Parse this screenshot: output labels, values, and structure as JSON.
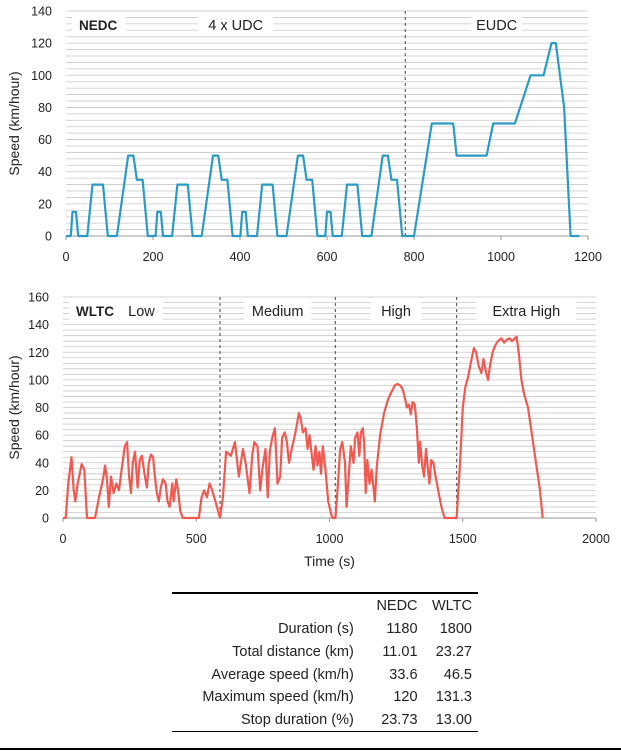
{
  "colors": {
    "nedc": "#2a9bc4",
    "wltc": "#ee5a52",
    "grid": "#c8c8c8",
    "divider": "#606060"
  },
  "chart_data": [
    {
      "type": "line",
      "title": "",
      "xlabel": "",
      "ylabel": "Speed (km/hour)",
      "xlim": [
        0,
        1200
      ],
      "ylim": [
        0,
        140
      ],
      "xticks": [
        0,
        200,
        400,
        600,
        800,
        1000,
        1200
      ],
      "yticks": [
        0,
        20,
        40,
        60,
        80,
        100,
        120,
        140
      ],
      "grid": "horizontal minor",
      "tag": "NEDC",
      "phases": [
        {
          "label": "4 x UDC",
          "x_start": 0,
          "x_end": 780
        },
        {
          "label": "EUDC",
          "x_start": 780,
          "x_end": 1200
        }
      ],
      "dividers": [
        780
      ],
      "series": [
        {
          "name": "",
          "points": [
            [
              0,
              0
            ],
            [
              11,
              0
            ],
            [
              15,
              15
            ],
            [
              23,
              15
            ],
            [
              28,
              0
            ],
            [
              49,
              0
            ],
            [
              61,
              32
            ],
            [
              85,
              32
            ],
            [
              96,
              0
            ],
            [
              117,
              0
            ],
            [
              143,
              50
            ],
            [
              155,
              50
            ],
            [
              163,
              35
            ],
            [
              176,
              35
            ],
            [
              188,
              0
            ],
            [
              195,
              0
            ],
            [
              206,
              0
            ],
            [
              210,
              15
            ],
            [
              218,
              15
            ],
            [
              223,
              0
            ],
            [
              244,
              0
            ],
            [
              256,
              32
            ],
            [
              280,
              32
            ],
            [
              291,
              0
            ],
            [
              312,
              0
            ],
            [
              338,
              50
            ],
            [
              350,
              50
            ],
            [
              358,
              35
            ],
            [
              371,
              35
            ],
            [
              383,
              0
            ],
            [
              390,
              0
            ],
            [
              401,
              0
            ],
            [
              405,
              15
            ],
            [
              413,
              15
            ],
            [
              418,
              0
            ],
            [
              439,
              0
            ],
            [
              451,
              32
            ],
            [
              475,
              32
            ],
            [
              486,
              0
            ],
            [
              507,
              0
            ],
            [
              533,
              50
            ],
            [
              545,
              50
            ],
            [
              553,
              35
            ],
            [
              566,
              35
            ],
            [
              578,
              0
            ],
            [
              585,
              0
            ],
            [
              596,
              0
            ],
            [
              600,
              15
            ],
            [
              608,
              15
            ],
            [
              613,
              0
            ],
            [
              634,
              0
            ],
            [
              646,
              32
            ],
            [
              670,
              32
            ],
            [
              681,
              0
            ],
            [
              702,
              0
            ],
            [
              728,
              50
            ],
            [
              740,
              50
            ],
            [
              748,
              35
            ],
            [
              761,
              35
            ],
            [
              773,
              0
            ],
            [
              780,
              0
            ],
            [
              800,
              0
            ],
            [
              841,
              70
            ],
            [
              890,
              70
            ],
            [
              898,
              50
            ],
            [
              967,
              50
            ],
            [
              982,
              70
            ],
            [
              1032,
              70
            ],
            [
              1068,
              100
            ],
            [
              1098,
              100
            ],
            [
              1116,
              120
            ],
            [
              1126,
              120
            ],
            [
              1145,
              80
            ],
            [
              1160,
              0
            ],
            [
              1180,
              0
            ]
          ]
        }
      ]
    },
    {
      "type": "line",
      "title": "",
      "xlabel": "Time (s)",
      "ylabel": "Speed (km/hour)",
      "xlim": [
        0,
        2000
      ],
      "ylim": [
        0,
        160
      ],
      "xticks": [
        0,
        500,
        1000,
        1500,
        2000
      ],
      "yticks": [
        0,
        20,
        40,
        60,
        80,
        100,
        120,
        140,
        160
      ],
      "grid": "horizontal minor",
      "tag": "WLTC",
      "phases": [
        {
          "label": "Low",
          "x_start": 0,
          "x_end": 589
        },
        {
          "label": "Medium",
          "x_start": 589,
          "x_end": 1022
        },
        {
          "label": "High",
          "x_start": 1022,
          "x_end": 1477
        },
        {
          "label": "Extra High",
          "x_start": 1477,
          "x_end": 2000
        }
      ],
      "dividers": [
        589,
        1022,
        1477
      ],
      "series": [
        {
          "name": "",
          "points": [
            [
              0,
              0
            ],
            [
              10,
              0
            ],
            [
              20,
              25
            ],
            [
              32,
              44
            ],
            [
              40,
              20
            ],
            [
              46,
              12
            ],
            [
              55,
              25
            ],
            [
              70,
              39
            ],
            [
              80,
              35
            ],
            [
              90,
              0
            ],
            [
              120,
              0
            ],
            [
              135,
              15
            ],
            [
              150,
              28
            ],
            [
              158,
              38
            ],
            [
              165,
              28
            ],
            [
              172,
              8
            ],
            [
              180,
              30
            ],
            [
              190,
              18
            ],
            [
              200,
              25
            ],
            [
              210,
              20
            ],
            [
              220,
              35
            ],
            [
              232,
              52
            ],
            [
              240,
              55
            ],
            [
              248,
              30
            ],
            [
              255,
              18
            ],
            [
              262,
              40
            ],
            [
              270,
              48
            ],
            [
              280,
              22
            ],
            [
              288,
              42
            ],
            [
              296,
              45
            ],
            [
              305,
              33
            ],
            [
              315,
              22
            ],
            [
              322,
              40
            ],
            [
              330,
              46
            ],
            [
              338,
              44
            ],
            [
              345,
              30
            ],
            [
              352,
              18
            ],
            [
              360,
              12
            ],
            [
              367,
              22
            ],
            [
              375,
              28
            ],
            [
              385,
              25
            ],
            [
              392,
              12
            ],
            [
              400,
              8
            ],
            [
              410,
              25
            ],
            [
              415,
              12
            ],
            [
              425,
              28
            ],
            [
              433,
              18
            ],
            [
              440,
              5
            ],
            [
              450,
              0
            ],
            [
              510,
              0
            ],
            [
              520,
              15
            ],
            [
              530,
              20
            ],
            [
              540,
              15
            ],
            [
              550,
              25
            ],
            [
              560,
              20
            ],
            [
              575,
              10
            ],
            [
              589,
              0
            ],
            [
              600,
              15
            ],
            [
              612,
              48
            ],
            [
              630,
              45
            ],
            [
              645,
              55
            ],
            [
              660,
              30
            ],
            [
              675,
              50
            ],
            [
              685,
              40
            ],
            [
              700,
              18
            ],
            [
              710,
              45
            ],
            [
              718,
              55
            ],
            [
              730,
              52
            ],
            [
              740,
              20
            ],
            [
              748,
              35
            ],
            [
              760,
              50
            ],
            [
              768,
              15
            ],
            [
              776,
              48
            ],
            [
              785,
              58
            ],
            [
              795,
              65
            ],
            [
              805,
              25
            ],
            [
              815,
              30
            ],
            [
              822,
              58
            ],
            [
              832,
              62
            ],
            [
              840,
              55
            ],
            [
              848,
              40
            ],
            [
              858,
              50
            ],
            [
              868,
              58
            ],
            [
              876,
              66
            ],
            [
              885,
              76
            ],
            [
              892,
              72
            ],
            [
              900,
              62
            ],
            [
              910,
              65
            ],
            [
              918,
              50
            ],
            [
              925,
              60
            ],
            [
              932,
              48
            ],
            [
              940,
              35
            ],
            [
              948,
              52
            ],
            [
              955,
              38
            ],
            [
              962,
              48
            ],
            [
              968,
              32
            ],
            [
              975,
              52
            ],
            [
              985,
              35
            ],
            [
              995,
              12
            ],
            [
              1010,
              0
            ],
            [
              1022,
              0
            ],
            [
              1030,
              20
            ],
            [
              1040,
              50
            ],
            [
              1048,
              55
            ],
            [
              1058,
              40
            ],
            [
              1064,
              8
            ],
            [
              1072,
              30
            ],
            [
              1080,
              52
            ],
            [
              1090,
              40
            ],
            [
              1096,
              58
            ],
            [
              1105,
              62
            ],
            [
              1112,
              45
            ],
            [
              1118,
              62
            ],
            [
              1125,
              65
            ],
            [
              1130,
              55
            ],
            [
              1136,
              18
            ],
            [
              1142,
              42
            ],
            [
              1150,
              25
            ],
            [
              1158,
              35
            ],
            [
              1165,
              22
            ],
            [
              1170,
              12
            ],
            [
              1178,
              38
            ],
            [
              1190,
              60
            ],
            [
              1205,
              76
            ],
            [
              1220,
              86
            ],
            [
              1235,
              92
            ],
            [
              1245,
              96
            ],
            [
              1255,
              97
            ],
            [
              1265,
              96
            ],
            [
              1275,
              93
            ],
            [
              1285,
              85
            ],
            [
              1290,
              80
            ],
            [
              1298,
              82
            ],
            [
              1305,
              75
            ],
            [
              1312,
              84
            ],
            [
              1320,
              82
            ],
            [
              1328,
              65
            ],
            [
              1335,
              40
            ],
            [
              1340,
              55
            ],
            [
              1348,
              38
            ],
            [
              1355,
              30
            ],
            [
              1362,
              50
            ],
            [
              1368,
              38
            ],
            [
              1375,
              25
            ],
            [
              1382,
              42
            ],
            [
              1390,
              40
            ],
            [
              1398,
              30
            ],
            [
              1408,
              20
            ],
            [
              1420,
              8
            ],
            [
              1432,
              0
            ],
            [
              1477,
              0
            ],
            [
              1490,
              40
            ],
            [
              1500,
              80
            ],
            [
              1510,
              95
            ],
            [
              1520,
              102
            ],
            [
              1530,
              112
            ],
            [
              1542,
              123
            ],
            [
              1550,
              120
            ],
            [
              1560,
              110
            ],
            [
              1570,
              105
            ],
            [
              1578,
              115
            ],
            [
              1588,
              105
            ],
            [
              1595,
              100
            ],
            [
              1602,
              110
            ],
            [
              1612,
              120
            ],
            [
              1622,
              125
            ],
            [
              1632,
              128
            ],
            [
              1645,
              130
            ],
            [
              1655,
              127
            ],
            [
              1665,
              129
            ],
            [
              1675,
              130
            ],
            [
              1685,
              128
            ],
            [
              1695,
              130
            ],
            [
              1702,
              131.3
            ],
            [
              1710,
              120
            ],
            [
              1720,
              100
            ],
            [
              1730,
              90
            ],
            [
              1745,
              80
            ],
            [
              1760,
              60
            ],
            [
              1775,
              40
            ],
            [
              1790,
              20
            ],
            [
              1800,
              0
            ]
          ]
        }
      ]
    }
  ],
  "summary_table": {
    "columns": [
      "",
      "NEDC",
      "WLTC"
    ],
    "rows": [
      {
        "label": "Duration (s)",
        "nedc": "1180",
        "wltc": "1800"
      },
      {
        "label": "Total distance (km)",
        "nedc": "11.01",
        "wltc": "23.27"
      },
      {
        "label": "Average speed (km/h)",
        "nedc": "33.6",
        "wltc": "46.5"
      },
      {
        "label": "Maximum speed (km/h)",
        "nedc": "120",
        "wltc": "131.3"
      },
      {
        "label": "Stop duration (%)",
        "nedc": "23.73",
        "wltc": "13.00"
      }
    ]
  }
}
